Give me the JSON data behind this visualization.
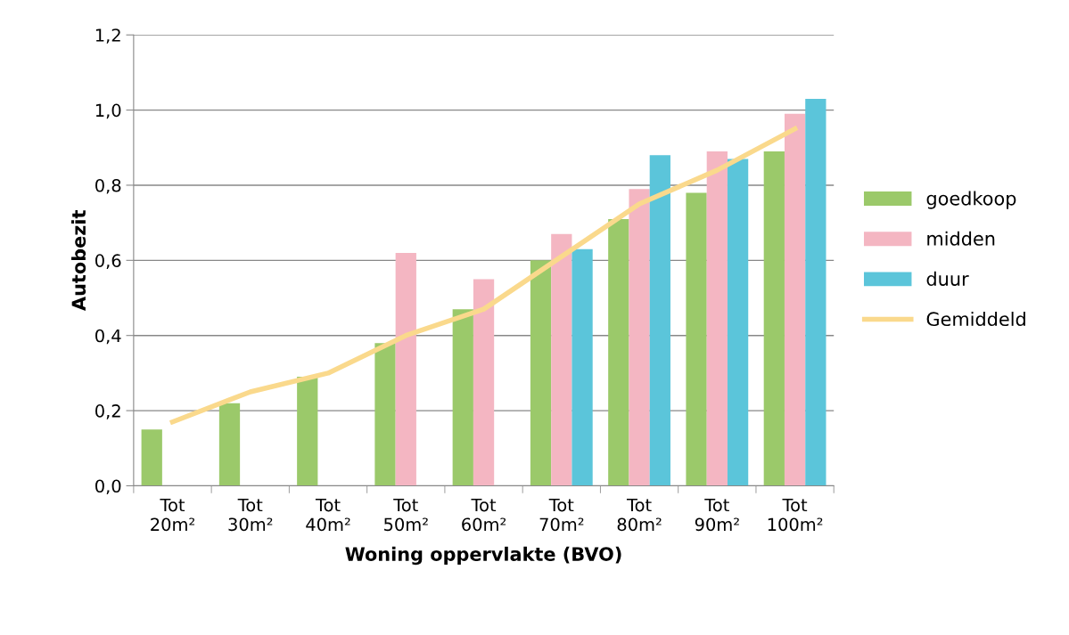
{
  "chart_data": {
    "type": "bar",
    "xlabel": "Woning oppervlakte (BVO)",
    "ylabel": "Autobezit",
    "categories": [
      "Tot\n20m²",
      "Tot\n30m²",
      "Tot\n40m²",
      "Tot\n50m²",
      "Tot\n60m²",
      "Tot\n70m²",
      "Tot\n80m²",
      "Tot\n90m²",
      "Tot\n100m²"
    ],
    "series": [
      {
        "name": "goedkoop",
        "color": "#9bc96a",
        "values": [
          0.15,
          0.22,
          0.29,
          0.38,
          0.47,
          0.6,
          0.71,
          0.78,
          0.89
        ]
      },
      {
        "name": "midden",
        "color": "#f4b6c2",
        "values": [
          null,
          null,
          null,
          0.62,
          0.55,
          0.67,
          0.79,
          0.89,
          0.99
        ]
      },
      {
        "name": "duur",
        "color": "#5bc5da",
        "values": [
          null,
          null,
          null,
          null,
          null,
          0.63,
          0.88,
          0.87,
          1.03
        ]
      },
      {
        "name": "Gemiddeld",
        "type": "line",
        "color": "#fad98c",
        "values": [
          0.17,
          0.25,
          0.3,
          0.4,
          0.47,
          0.61,
          0.75,
          0.84,
          0.95
        ]
      }
    ],
    "ylim": [
      0,
      1.2
    ],
    "yticks": [
      {
        "value": 0,
        "label": "0,0"
      },
      {
        "value": 0.2,
        "label": "0,2"
      },
      {
        "value": 0.4,
        "label": "0,4"
      },
      {
        "value": 0.6,
        "label": "0,6"
      },
      {
        "value": 0.8,
        "label": "0,8"
      },
      {
        "value": 1.0,
        "label": "1,0"
      },
      {
        "value": 1.2,
        "label": "1,2"
      }
    ],
    "grid": "y",
    "legend": "right",
    "marker": "none",
    "line_style": "solid"
  }
}
